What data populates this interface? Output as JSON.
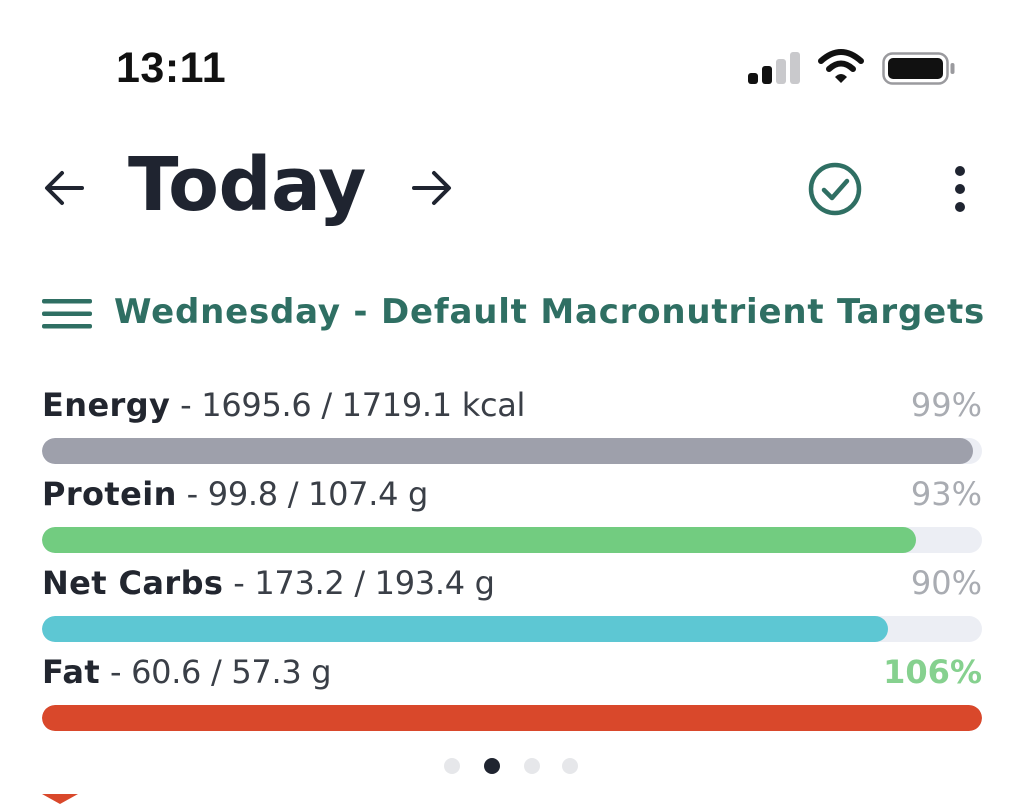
{
  "status_bar": {
    "time": "13:11",
    "icons": [
      "signal-icon",
      "wifi-icon",
      "battery-icon"
    ]
  },
  "header": {
    "title": "Today",
    "icons": [
      "arrow-left-icon",
      "arrow-right-icon",
      "check-circle-icon",
      "more-vertical-icon"
    ],
    "accent_color": "#2f6f63"
  },
  "targets": {
    "label": "Wednesday - Default Macronutrient Targets",
    "icon": "menu-icon"
  },
  "macros": [
    {
      "name": "Energy",
      "detail": " - 1695.6 / 1719.1 kcal",
      "percent_label": "99%",
      "fill": 0.99,
      "color": "#9ea0ab"
    },
    {
      "name": "Protein",
      "detail": " - 99.8 / 107.4 g",
      "percent_label": "93%",
      "fill": 0.93,
      "color": "#72cc80"
    },
    {
      "name": "Net Carbs",
      "detail": " - 173.2 / 193.4 g",
      "percent_label": "90%",
      "fill": 0.9,
      "color": "#5dc7d3"
    },
    {
      "name": "Fat",
      "detail": " - 60.6 / 57.3 g",
      "percent_label": "106%",
      "fill": 1.0,
      "color": "#d9482b"
    }
  ],
  "pager": {
    "count": 4,
    "active_index": 1
  }
}
